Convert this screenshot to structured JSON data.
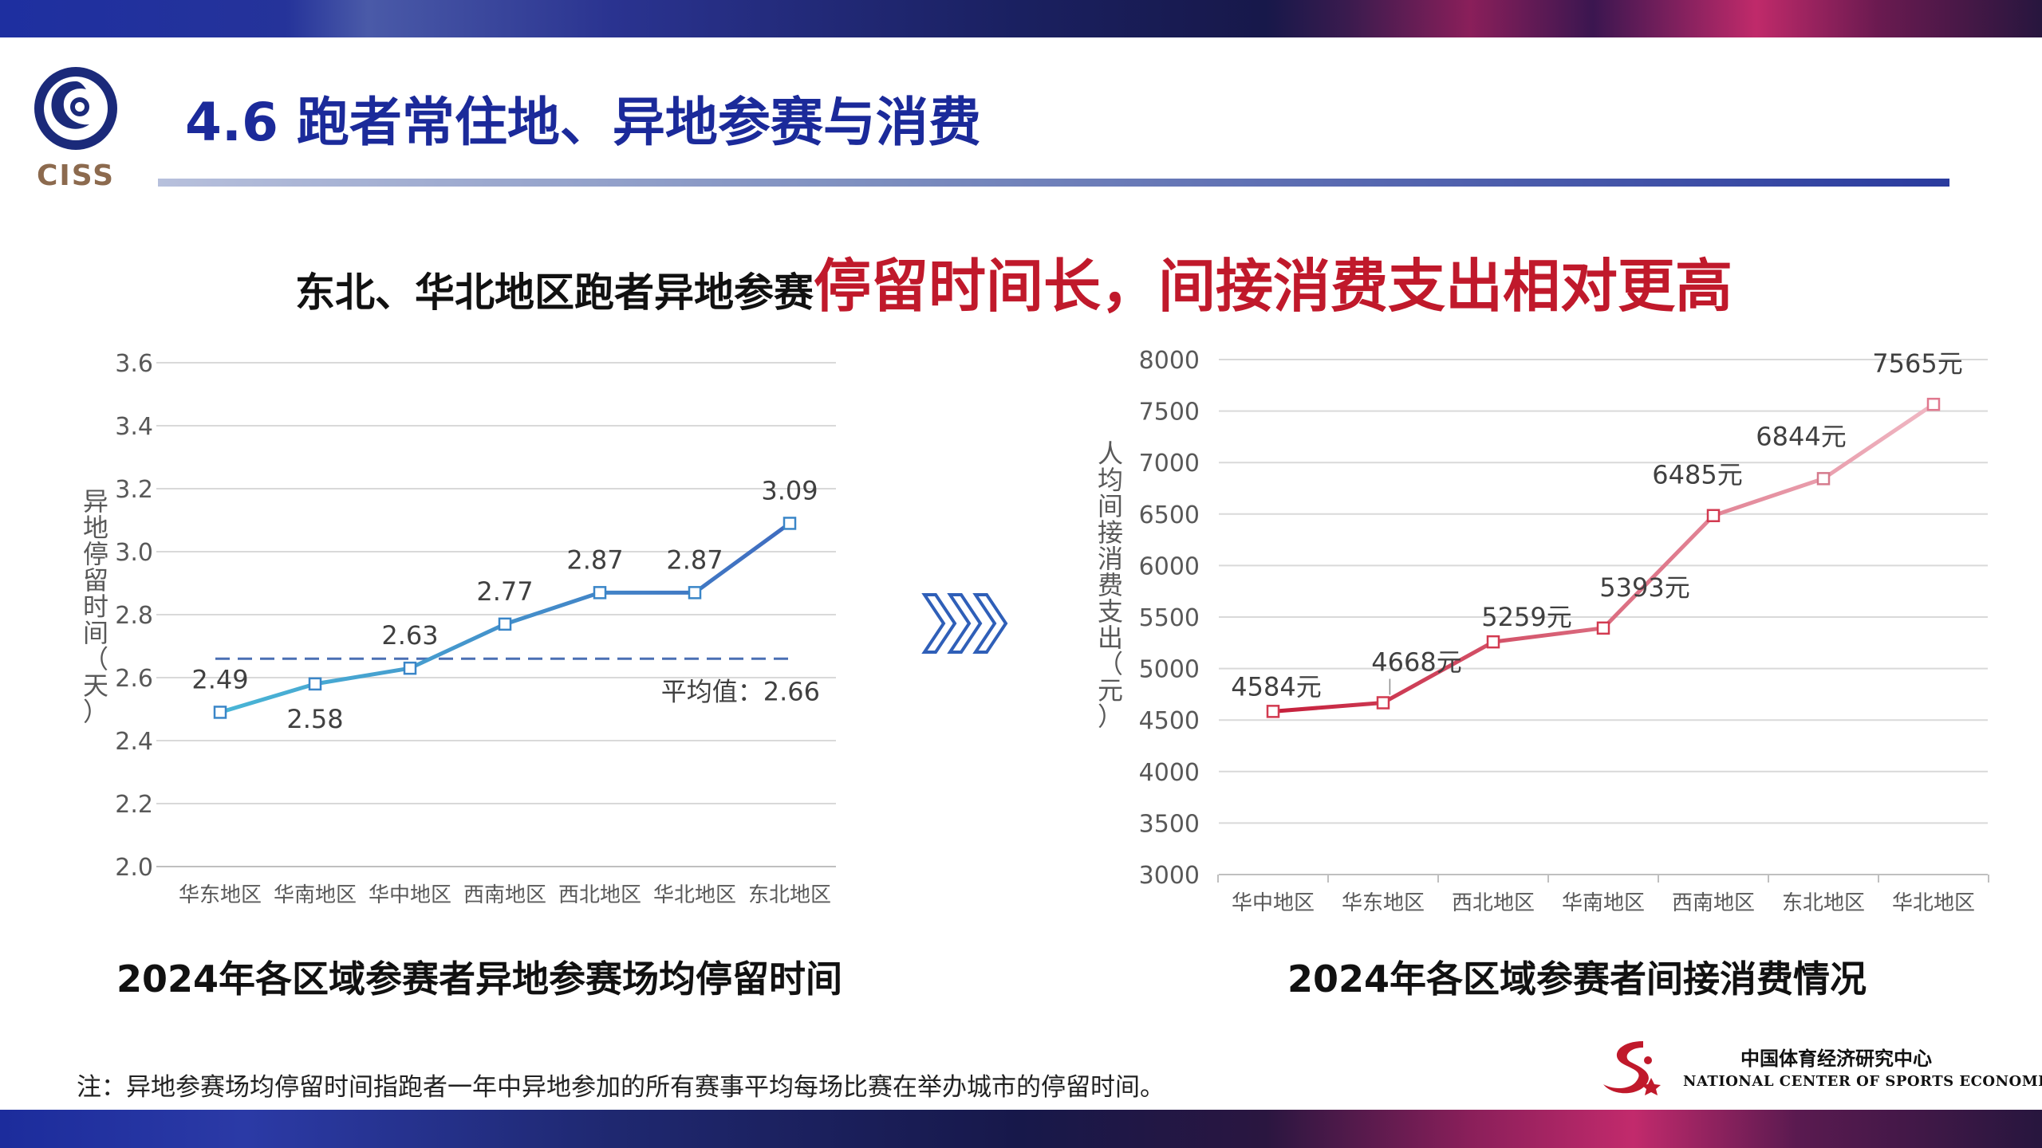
{
  "page": {
    "title": "4.6 跑者常住地、异地参赛与消费",
    "logo_text": "CISS",
    "headline_black": "东北、华北地区跑者异地参赛",
    "headline_red": "停留时间长，间接消费支出相对更高",
    "note": "注：异地参赛场均停留时间指跑者一年中异地参加的所有赛事平均每场比赛在举办城市的停留时间。",
    "footer_org_cn": "中国体育经济研究中心",
    "footer_org_en": "NATIONAL CENTER OF SPORTS ECONOMIC",
    "colors": {
      "title_blue": "#1b2a9a",
      "headline_red": "#c0192b",
      "left_line": "#3b8fd0",
      "right_line": "#d1374f"
    }
  },
  "chart_data": [
    {
      "type": "line",
      "title": "2024年各区域参赛者异地参赛场均停留时间",
      "ylabel": "异地停留时间（天）",
      "categories": [
        "华东地区",
        "华南地区",
        "华中地区",
        "西南地区",
        "西北地区",
        "华北地区",
        "东北地区"
      ],
      "values": [
        2.49,
        2.58,
        2.63,
        2.77,
        2.87,
        2.87,
        3.09
      ],
      "data_labels": [
        "2.49",
        "2.58",
        "2.63",
        "2.77",
        "2.87",
        "2.87",
        "3.09"
      ],
      "yticks": [
        "2.0",
        "2.2",
        "2.4",
        "2.6",
        "2.8",
        "3.0",
        "3.2",
        "3.4",
        "3.6"
      ],
      "ylim": [
        2.0,
        3.6
      ],
      "average": 2.66,
      "average_label": "平均值：2.66",
      "grid": true
    },
    {
      "type": "line",
      "title": "2024年各区域参赛者间接消费情况",
      "ylabel": "人均间接消费支出（元）",
      "categories": [
        "华中地区",
        "华东地区",
        "西北地区",
        "华南地区",
        "西南地区",
        "东北地区",
        "华北地区"
      ],
      "values": [
        4584,
        4668,
        5259,
        5393,
        6485,
        6844,
        7565
      ],
      "data_labels": [
        "4584元",
        "4668元",
        "5259元",
        "5393元",
        "6485元",
        "6844元",
        "7565元"
      ],
      "yticks": [
        "3000",
        "3500",
        "4000",
        "4500",
        "5000",
        "5500",
        "6000",
        "6500",
        "7000",
        "7500",
        "8000"
      ],
      "ylim": [
        3000,
        8000
      ],
      "grid": true
    }
  ]
}
